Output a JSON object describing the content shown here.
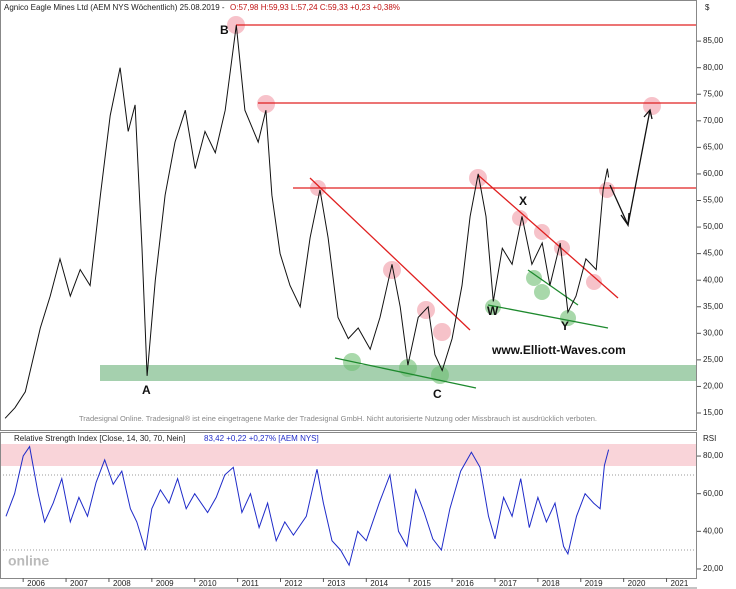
{
  "chart_data": [
    {
      "type": "line",
      "title": "Agnico Eagle Mines Ltd (AEM NYS  Wöchentlich) 25.08.2019 -",
      "quote": "O:57,98 H:59,93 L:57,24 C:59,33 +0,23 +0,38%",
      "y_unit": "$",
      "labels": [
        "A",
        "B",
        "C",
        "W",
        "X",
        "Y"
      ],
      "website": "www.Elliott-Waves.com",
      "disclaimer": "Tradesignal Online. Tradesignal® ist eine eingetragene Marke der Tradesignal GmbH. Nicht autorisierte Nutzung oder Missbrauch ist ausdrücklich verboten.",
      "x": [
        2005.58,
        2005.81,
        2006.05,
        2006.4,
        2006.63,
        2006.86,
        2007.1,
        2007.33,
        2007.56,
        2007.8,
        2008.03,
        2008.26,
        2008.45,
        2008.61,
        2008.77,
        2008.89,
        2009.08,
        2009.31,
        2009.54,
        2009.78,
        2010.01,
        2010.24,
        2010.48,
        2010.71,
        2010.97,
        2011.17,
        2011.48,
        2011.66,
        2011.8,
        2011.99,
        2012.22,
        2012.46,
        2012.69,
        2012.92,
        2013.11,
        2013.34,
        2013.58,
        2013.81,
        2014.09,
        2014.32,
        2014.6,
        2014.79,
        2014.97,
        2015.21,
        2015.44,
        2015.6,
        2015.77,
        2016.0,
        2016.23,
        2016.42,
        2016.61,
        2016.79,
        2016.96,
        2017.17,
        2017.4,
        2017.63,
        2017.86,
        2018.1,
        2018.28,
        2018.52,
        2018.7,
        2018.89,
        2019.12,
        2019.36,
        2019.52,
        2019.62,
        2019.65
      ],
      "series": [
        {
          "name": "AEM",
          "color": "#111111",
          "values": [
            14,
            16,
            19,
            31,
            37,
            44,
            37,
            42,
            39,
            56,
            71,
            80,
            68,
            73,
            46,
            22,
            40,
            56,
            66,
            72,
            61,
            68,
            64,
            72,
            88,
            72,
            66,
            72,
            56,
            45,
            39,
            35,
            48,
            57,
            48,
            33,
            29,
            31,
            27,
            33,
            43,
            35,
            24,
            33,
            35,
            26,
            23,
            29,
            39,
            52,
            60,
            52,
            36,
            46,
            43,
            52,
            43,
            47,
            39,
            47,
            34,
            37,
            44,
            42,
            57,
            61,
            59.33
          ]
        }
      ],
      "xlim": [
        2005.46,
        2021.71
      ],
      "ylim": [
        11.8,
        91.8
      ],
      "yticks": [
        {
          "value": 15,
          "label": "15,00"
        },
        {
          "value": 20,
          "label": "20,00"
        },
        {
          "value": 25,
          "label": "25,00"
        },
        {
          "value": 30,
          "label": "30,00"
        },
        {
          "value": 35,
          "label": "35,00"
        },
        {
          "value": 40,
          "label": "40,00"
        },
        {
          "value": 45,
          "label": "45,00"
        },
        {
          "value": 50,
          "label": "50,00"
        },
        {
          "value": 55,
          "label": "55,00"
        },
        {
          "value": 60,
          "label": "60,00"
        },
        {
          "value": 65,
          "label": "65,00"
        },
        {
          "value": 70,
          "label": "70,00"
        },
        {
          "value": 75,
          "label": "75,00"
        },
        {
          "value": 80,
          "label": "80,00"
        },
        {
          "value": 85,
          "label": "85,00"
        }
      ]
    },
    {
      "type": "line",
      "title": "Relative Strength Index [Close, 14, 30, 70, Nein]",
      "quote": "83,42  +0,22  +0,27%  [AEM NYS]",
      "y_unit": "RSI",
      "watermark": "online",
      "x": [
        2005.6,
        2005.8,
        2006.0,
        2006.15,
        2006.35,
        2006.5,
        2006.7,
        2006.9,
        2007.1,
        2007.3,
        2007.5,
        2007.7,
        2007.9,
        2008.1,
        2008.3,
        2008.5,
        2008.65,
        2008.85,
        2009.0,
        2009.2,
        2009.4,
        2009.6,
        2009.8,
        2010.0,
        2010.3,
        2010.5,
        2010.7,
        2010.9,
        2011.1,
        2011.3,
        2011.5,
        2011.7,
        2011.9,
        2012.1,
        2012.3,
        2012.6,
        2012.85,
        2013.0,
        2013.2,
        2013.4,
        2013.6,
        2013.8,
        2014.0,
        2014.3,
        2014.55,
        2014.75,
        2014.95,
        2015.15,
        2015.35,
        2015.55,
        2015.75,
        2015.95,
        2016.2,
        2016.45,
        2016.65,
        2016.85,
        2017.0,
        2017.2,
        2017.4,
        2017.6,
        2017.8,
        2018.0,
        2018.2,
        2018.4,
        2018.6,
        2018.7,
        2018.9,
        2019.1,
        2019.3,
        2019.45,
        2019.55,
        2019.65
      ],
      "series": [
        {
          "name": "RSI",
          "color": "#1f2bc9",
          "values": [
            48,
            60,
            80,
            85,
            60,
            45,
            55,
            68,
            45,
            58,
            48,
            66,
            78,
            65,
            72,
            52,
            45,
            30,
            52,
            62,
            55,
            68,
            52,
            60,
            50,
            58,
            70,
            74,
            50,
            60,
            42,
            55,
            35,
            45,
            38,
            48,
            73,
            55,
            35,
            30,
            22,
            40,
            35,
            55,
            70,
            40,
            32,
            62,
            50,
            36,
            30,
            52,
            72,
            82,
            74,
            48,
            36,
            58,
            48,
            68,
            42,
            58,
            45,
            55,
            32,
            28,
            48,
            60,
            55,
            52,
            75,
            83.42
          ]
        }
      ],
      "xlim": [
        2005.46,
        2021.71
      ],
      "ylim": [
        15.2,
        86.4
      ],
      "yticks": [
        {
          "value": 20,
          "label": "20,00"
        },
        {
          "value": 40,
          "label": "40,00"
        },
        {
          "value": 60,
          "label": "60,00"
        },
        {
          "value": 80,
          "label": "80,00"
        }
      ],
      "xticks": [
        2006,
        2007,
        2008,
        2009,
        2010,
        2011,
        2012,
        2013,
        2014,
        2015,
        2016,
        2017,
        2018,
        2019,
        2020,
        2021
      ]
    }
  ]
}
